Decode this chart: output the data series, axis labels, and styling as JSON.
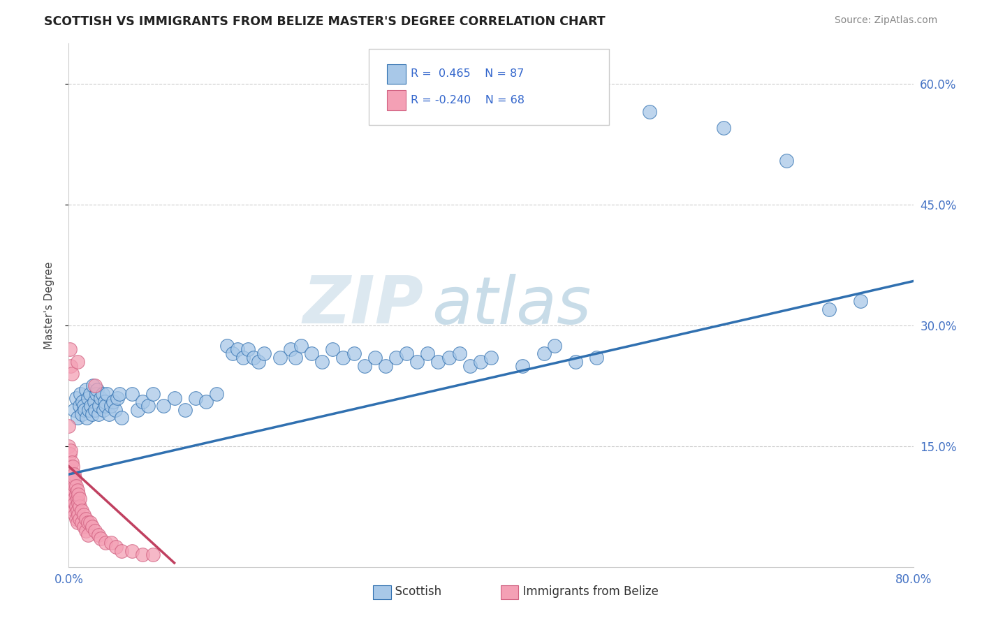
{
  "title": "SCOTTISH VS IMMIGRANTS FROM BELIZE MASTER'S DEGREE CORRELATION CHART",
  "source": "Source: ZipAtlas.com",
  "ylabel": "Master's Degree",
  "legend_labels": [
    "Scottish",
    "Immigrants from Belize"
  ],
  "scatter_color_blue": "#a8c8e8",
  "scatter_color_pink": "#f4a0b5",
  "line_color_blue": "#3070b0",
  "line_color_pink": "#c04060",
  "xlim": [
    0.0,
    0.8
  ],
  "ylim": [
    0.0,
    0.65
  ],
  "xtick_positions": [
    0.0,
    0.1,
    0.2,
    0.3,
    0.4,
    0.5,
    0.6,
    0.7,
    0.8
  ],
  "xtick_labels": [
    "0.0%",
    "",
    "",
    "",
    "",
    "",
    "",
    "",
    "80.0%"
  ],
  "ytick_positions": [
    0.15,
    0.3,
    0.45,
    0.6
  ],
  "ytick_labels": [
    "15.0%",
    "30.0%",
    "45.0%",
    "60.0%"
  ],
  "background_color": "#ffffff",
  "blue_line_x0": 0.0,
  "blue_line_y0": 0.115,
  "blue_line_x1": 0.8,
  "blue_line_y1": 0.355,
  "pink_line_x0": 0.0,
  "pink_line_y0": 0.125,
  "pink_line_x1": 0.1,
  "pink_line_y1": 0.005,
  "r_blue": "0.465",
  "n_blue": "87",
  "r_pink": "-0.240",
  "n_pink": "68"
}
